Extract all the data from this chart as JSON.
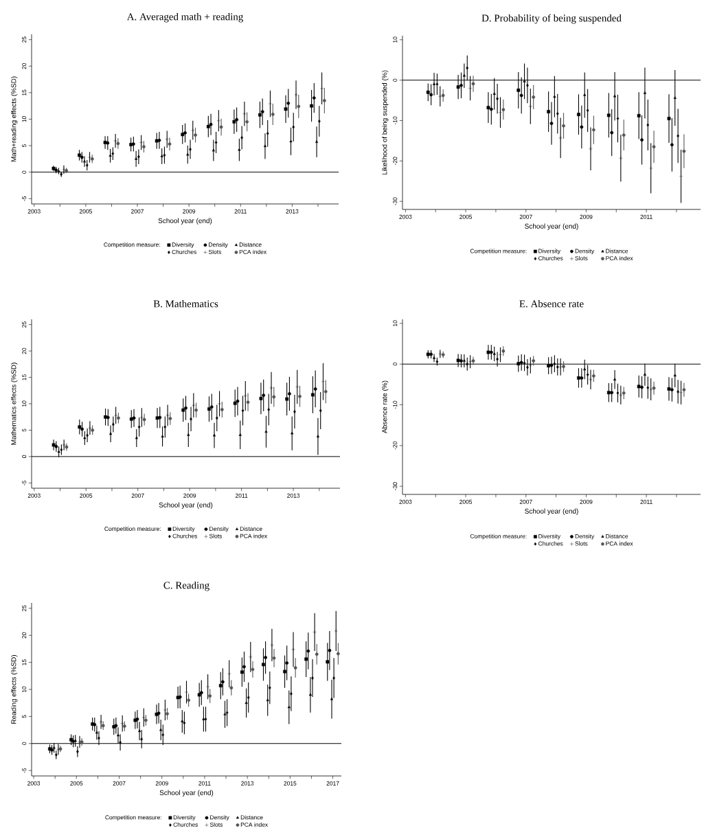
{
  "chart_data": [
    {
      "type": "scatter",
      "title": "A. Averaged math + reading",
      "xlabel": "School year (end)",
      "ylabel": "Math+reading effects (%SD)",
      "legend_title": "Competition measure:",
      "legend": "bottom",
      "xlim": [
        2002.9,
        2014.8
      ],
      "ylim": [
        -6,
        26
      ],
      "xticks": [
        2003,
        {
          "value": 2004,
          "label": null
        },
        2005,
        {
          "value": 2006,
          "label": null
        },
        2007,
        {
          "value": 2008,
          "label": null
        },
        2009,
        {
          "value": 2010,
          "label": null
        },
        2011,
        {
          "value": 2012,
          "label": null
        },
        2013,
        {
          "value": 2014,
          "label": null
        }
      ],
      "yticks": [
        -5,
        0,
        5,
        10,
        15,
        20,
        25
      ],
      "ref_lines": [
        {
          "axis": "y",
          "value": 0,
          "color": "#000000"
        }
      ],
      "series": [
        {
          "name": "Diversity",
          "color": "#000000",
          "marker": "square",
          "x": [
            2003.75,
            2004.75,
            2005.75,
            2006.75,
            2007.75,
            2008.75,
            2009.75,
            2010.75,
            2011.75,
            2012.75,
            2013.75
          ],
          "values": [
            0.7,
            3.2,
            5.6,
            5.2,
            5.9,
            7.1,
            8.6,
            9.5,
            10.8,
            11.9,
            12.5
          ],
          "errors": [
            0.5,
            1,
            1.2,
            1.3,
            1.5,
            1.8,
            2,
            2.3,
            2.5,
            2.6,
            3
          ]
        },
        {
          "name": "Density",
          "color": "#000000",
          "marker": "circle",
          "x": [
            2003.85,
            2004.85,
            2005.85,
            2006.85,
            2007.85,
            2008.85,
            2009.85,
            2010.85,
            2011.85,
            2012.85,
            2013.85
          ],
          "values": [
            0.4,
            2.8,
            5.5,
            5.3,
            6.0,
            7.4,
            9.0,
            9.9,
            11.4,
            13.0,
            14.0
          ],
          "errors": [
            0.6,
            1,
            1.3,
            1.4,
            1.6,
            1.8,
            2,
            2.3,
            2.5,
            2.7,
            2.8
          ]
        },
        {
          "name": "Distance",
          "color": "#000000",
          "marker": "triangle",
          "x": [
            2003.95,
            2004.95,
            2005.95,
            2006.95,
            2007.95,
            2008.95,
            2009.95,
            2010.95,
            2011.95,
            2012.95,
            2013.95
          ],
          "values": [
            0.2,
            2.0,
            3.1,
            2.5,
            3.0,
            3.3,
            4.1,
            4.2,
            4.9,
            5.8,
            5.7
          ],
          "errors": [
            0.6,
            1,
            1.3,
            1.5,
            1.5,
            1.7,
            2,
            2.1,
            2.4,
            2.6,
            2.9
          ]
        },
        {
          "name": "Churches",
          "color": "#000000",
          "marker": "diamond",
          "x": [
            2004.05,
            2005.05,
            2006.05,
            2007.05,
            2008.05,
            2009.05,
            2010.05,
            2011.05,
            2012.05,
            2013.05,
            2014.05
          ],
          "values": [
            -0.4,
            1.3,
            3.5,
            2.9,
            3.2,
            4.3,
            5.6,
            6.5,
            7.3,
            8.5,
            9.6
          ],
          "errors": [
            0.5,
            1,
            1.2,
            1.4,
            1.6,
            1.8,
            2,
            2.2,
            2.5,
            2.7,
            2.9
          ]
        },
        {
          "name": "Slots",
          "color": "#000000",
          "marker": "cross",
          "x": [
            2004.15,
            2005.15,
            2006.15,
            2007.15,
            2008.15,
            2009.15,
            2010.15,
            2011.15,
            2012.15,
            2013.15,
            2014.15
          ],
          "values": [
            0.5,
            2.8,
            5.9,
            5.6,
            6.2,
            7.9,
            9.7,
            11.0,
            12.9,
            14.6,
            15.8
          ],
          "errors": [
            0.8,
            1,
            1.3,
            1.4,
            1.6,
            1.8,
            2,
            2.3,
            2.5,
            2.7,
            3
          ]
        },
        {
          "name": "PCA index",
          "color": "#555555",
          "marker": "circle",
          "x": [
            2004.25,
            2005.25,
            2006.25,
            2007.25,
            2008.25,
            2009.25,
            2010.25,
            2011.25,
            2012.25,
            2013.25,
            2014.25
          ],
          "values": [
            0.3,
            2.5,
            5.4,
            4.8,
            5.3,
            7.0,
            8.5,
            9.5,
            10.9,
            12.4,
            13.5
          ],
          "errors": [
            0.5,
            0.8,
            1,
            1.1,
            1.2,
            1.4,
            1.6,
            1.8,
            2,
            2.2,
            2.4
          ]
        }
      ]
    },
    {
      "type": "scatter",
      "title": "D. Probability of being suspended",
      "xlabel": "School year (end)",
      "ylabel": "Likelihood of being suspended (%)",
      "legend_title": "Competition measure:",
      "legend": "bottom",
      "xlim": [
        2002.9,
        2012.8
      ],
      "ylim": [
        -32,
        11
      ],
      "xticks": [
        2003,
        {
          "value": 2004,
          "label": null
        },
        2005,
        {
          "value": 2006,
          "label": null
        },
        2007,
        {
          "value": 2008,
          "label": null
        },
        2009,
        {
          "value": 2010,
          "label": null
        },
        2011,
        {
          "value": 2012,
          "label": null
        }
      ],
      "yticks": [
        -30,
        -20,
        -10,
        0,
        10
      ],
      "ref_lines": [
        {
          "axis": "y",
          "value": 0,
          "color": "#000000"
        }
      ],
      "series": [
        {
          "name": "Diversity",
          "color": "#000000",
          "marker": "square",
          "x": [
            2003.75,
            2004.75,
            2005.75,
            2006.75,
            2007.75,
            2008.75,
            2009.75,
            2010.75,
            2011.75
          ],
          "values": [
            -3,
            -1.7,
            -6.8,
            -2.5,
            -7.8,
            -8.5,
            -8.7,
            -8.8,
            -9.5
          ],
          "errors": [
            2.2,
            3,
            3.8,
            4.5,
            5,
            5,
            5.5,
            5.8,
            6
          ]
        },
        {
          "name": "Density",
          "color": "#000000",
          "marker": "circle",
          "x": [
            2003.85,
            2004.85,
            2005.85,
            2006.85,
            2007.85,
            2008.85,
            2009.85,
            2010.85,
            2011.85
          ],
          "values": [
            -3.6,
            -1.3,
            -7.2,
            -3.8,
            -10.7,
            -11.6,
            -13,
            -14.8,
            -16
          ],
          "errors": [
            2.6,
            3.2,
            3.8,
            4.5,
            5.3,
            5.3,
            5.8,
            6.1,
            6.6
          ]
        },
        {
          "name": "Distance",
          "color": "#000000",
          "marker": "triangle",
          "x": [
            2003.95,
            2004.95,
            2005.95,
            2006.95,
            2007.95,
            2008.95,
            2009.95,
            2010.95,
            2011.95
          ],
          "values": [
            -1,
            1.1,
            -3.4,
            -0.3,
            -4.1,
            -3.7,
            -4,
            -3.2,
            -4.4
          ],
          "errors": [
            2.8,
            3,
            3.9,
            4.4,
            5.1,
            5.6,
            6,
            6.3,
            6.9
          ]
        },
        {
          "name": "Churches",
          "color": "#000000",
          "marker": "diamond",
          "x": [
            2004.05,
            2005.05,
            2006.05,
            2007.05,
            2008.05,
            2009.05,
            2010.05,
            2011.05,
            2012.05
          ],
          "values": [
            -1,
            3,
            -4.6,
            -1.3,
            -8.3,
            -7.5,
            -9.5,
            -11.1,
            -13.8
          ],
          "errors": [
            2.6,
            3.1,
            3.7,
            4.4,
            4.9,
            5.3,
            5.9,
            6.3,
            6.7
          ]
        },
        {
          "name": "Slots",
          "color": "#000000",
          "marker": "cross",
          "x": [
            2004.15,
            2005.15,
            2006.15,
            2007.15,
            2008.15,
            2009.15,
            2010.15,
            2011.15,
            2012.15
          ],
          "values": [
            -4,
            -2,
            -8,
            -6.5,
            -14.3,
            -17,
            -19.3,
            -21.8,
            -23.8
          ],
          "errors": [
            2.5,
            3,
            3.8,
            4.4,
            5,
            5.3,
            5.8,
            6.2,
            6.6
          ]
        },
        {
          "name": "PCA index",
          "color": "#555555",
          "marker": "circle",
          "x": [
            2004.25,
            2005.25,
            2006.25,
            2007.25,
            2008.25,
            2009.25,
            2010.25,
            2011.25,
            2012.25
          ],
          "values": [
            -3.8,
            -0.9,
            -7.3,
            -4.2,
            -11.3,
            -12.3,
            -13.6,
            -16.5,
            -17.6
          ],
          "errors": [
            1.5,
            2,
            2.5,
            3,
            3.2,
            3.5,
            3.8,
            4,
            4.2
          ]
        }
      ]
    },
    {
      "type": "scatter",
      "title": "B. Mathematics",
      "xlabel": "School year (end)",
      "ylabel": "Mathematics effects (%SD)",
      "legend_title": "Competition measure:",
      "legend": "bottom",
      "xlim": [
        2002.9,
        2014.8
      ],
      "ylim": [
        -6,
        26
      ],
      "xticks": [
        2003,
        {
          "value": 2004,
          "label": null
        },
        2005,
        {
          "value": 2006,
          "label": null
        },
        2007,
        {
          "value": 2008,
          "label": null
        },
        2009,
        {
          "value": 2010,
          "label": null
        },
        2011,
        {
          "value": 2012,
          "label": null
        },
        2013,
        {
          "value": 2014,
          "label": null
        }
      ],
      "yticks": [
        -5,
        0,
        5,
        10,
        15,
        20,
        25
      ],
      "ref_lines": [
        {
          "axis": "y",
          "value": 0,
          "color": "#000000"
        }
      ],
      "series": [
        {
          "name": "Diversity",
          "color": "#000000",
          "marker": "square",
          "x": [
            2003.75,
            2004.75,
            2005.75,
            2006.75,
            2007.75,
            2008.75,
            2009.75,
            2010.75,
            2011.75,
            2012.75,
            2013.75
          ],
          "values": [
            2.2,
            5.6,
            7.5,
            7.1,
            7.3,
            8.8,
            9.0,
            10.1,
            11.0,
            10.9,
            11.7
          ],
          "errors": [
            1,
            1.4,
            1.6,
            1.7,
            1.9,
            2.2,
            2.4,
            2.6,
            3,
            3.1,
            3.5
          ]
        },
        {
          "name": "Density",
          "color": "#000000",
          "marker": "circle",
          "x": [
            2003.85,
            2004.85,
            2005.85,
            2006.85,
            2007.85,
            2008.85,
            2009.85,
            2010.85,
            2011.85,
            2012.85,
            2013.85
          ],
          "values": [
            1.9,
            5.2,
            7.4,
            7.3,
            7.4,
            9.2,
            9.4,
            10.5,
            11.6,
            11.9,
            12.8
          ],
          "errors": [
            1,
            1.4,
            1.6,
            1.7,
            2,
            2.3,
            2.5,
            2.7,
            3,
            3.2,
            3.5
          ]
        },
        {
          "name": "Distance",
          "color": "#000000",
          "marker": "triangle",
          "x": [
            2003.95,
            2004.95,
            2005.95,
            2006.95,
            2007.95,
            2008.95,
            2009.95,
            2010.95,
            2011.95,
            2012.95,
            2013.95
          ],
          "values": [
            0.9,
            3.5,
            4.3,
            3.5,
            3.8,
            4.1,
            4.0,
            4.1,
            4.7,
            4.4,
            3.8
          ],
          "errors": [
            1,
            1.3,
            1.6,
            1.7,
            1.9,
            2.3,
            2.4,
            2.7,
            3,
            3.2,
            3.5
          ]
        },
        {
          "name": "Churches",
          "color": "#000000",
          "marker": "diamond",
          "x": [
            2004.05,
            2005.05,
            2006.05,
            2007.05,
            2008.05,
            2009.05,
            2010.05,
            2011.05,
            2012.05,
            2013.05,
            2014.05
          ],
          "values": [
            1.3,
            4.0,
            6.1,
            5.6,
            5.6,
            7.1,
            7.3,
            8.7,
            8.9,
            8.5,
            8.7
          ],
          "errors": [
            1,
            1.3,
            1.5,
            1.8,
            2,
            2.3,
            2.5,
            2.8,
            3,
            3.2,
            3.5
          ]
        },
        {
          "name": "Slots",
          "color": "#000000",
          "marker": "cross",
          "x": [
            2004.15,
            2005.15,
            2006.15,
            2007.15,
            2008.15,
            2009.15,
            2010.15,
            2011.15,
            2012.15,
            2013.15,
            2014.15
          ],
          "values": [
            2.2,
            5.4,
            7.8,
            7.4,
            7.8,
            9.7,
            10.0,
            11.5,
            13.0,
            13.2,
            14.2
          ],
          "errors": [
            1,
            1.3,
            1.6,
            1.8,
            2,
            2.3,
            2.4,
            2.8,
            3,
            3.2,
            3.5
          ]
        },
        {
          "name": "PCA index",
          "color": "#555555",
          "marker": "circle",
          "x": [
            2004.25,
            2005.25,
            2006.25,
            2007.25,
            2008.25,
            2009.25,
            2010.25,
            2011.25,
            2012.25,
            2013.25,
            2014.25
          ],
          "values": [
            1.8,
            5.0,
            7.3,
            7.0,
            7.2,
            8.8,
            8.9,
            10.3,
            11.3,
            11.4,
            12.3
          ],
          "errors": [
            0.7,
            0.9,
            1,
            1.1,
            1.2,
            1.4,
            1.5,
            1.7,
            1.9,
            2,
            2.2
          ]
        }
      ]
    },
    {
      "type": "scatter",
      "title": "E. Absence rate",
      "xlabel": "School year (end)",
      "ylabel": "Absence rate (%)",
      "legend_title": "Competition measure:",
      "legend": "bottom",
      "xlim": [
        2002.9,
        2012.8
      ],
      "ylim": [
        -32,
        11
      ],
      "xticks": [
        2003,
        {
          "value": 2004,
          "label": null
        },
        2005,
        {
          "value": 2006,
          "label": null
        },
        2007,
        {
          "value": 2008,
          "label": null
        },
        2009,
        {
          "value": 2010,
          "label": null
        },
        2011,
        {
          "value": 2012,
          "label": null
        }
      ],
      "yticks": [
        -30,
        -20,
        -10,
        0,
        10
      ],
      "ref_lines": [
        {
          "axis": "y",
          "value": 0,
          "color": "#000000"
        }
      ],
      "series": [
        {
          "name": "Diversity",
          "color": "#000000",
          "marker": "square",
          "x": [
            2003.75,
            2004.75,
            2005.75,
            2006.75,
            2007.75,
            2008.75,
            2009.75,
            2010.75,
            2011.75
          ],
          "values": [
            2.4,
            0.9,
            2.9,
            0.1,
            -0.4,
            -3.4,
            -7.0,
            -5.5,
            -6.1
          ],
          "errors": [
            1,
            1.6,
            1.8,
            2,
            2.1,
            2.4,
            2.3,
            2.7,
            2.9
          ]
        },
        {
          "name": "Density",
          "color": "#000000",
          "marker": "circle",
          "x": [
            2003.85,
            2004.85,
            2005.85,
            2006.85,
            2007.85,
            2008.85,
            2009.85,
            2010.85,
            2011.85
          ],
          "values": [
            2.4,
            0.8,
            2.9,
            0.4,
            -0.3,
            -3.4,
            -7.0,
            -5.7,
            -6.3
          ],
          "errors": [
            1,
            1.6,
            1.8,
            2,
            2.1,
            2.4,
            2.3,
            2.7,
            2.9
          ]
        },
        {
          "name": "Distance",
          "color": "#000000",
          "marker": "triangle",
          "x": [
            2003.95,
            2004.95,
            2005.95,
            2006.95,
            2007.95,
            2008.95,
            2009.95,
            2010.95,
            2011.95
          ],
          "values": [
            1.5,
            0.8,
            2.5,
            0.3,
            0.1,
            -1.3,
            -3.8,
            -2.6,
            -2.8
          ],
          "errors": [
            1,
            1.6,
            1.8,
            2,
            2.1,
            2.4,
            2.3,
            2.7,
            2.9
          ]
        },
        {
          "name": "Churches",
          "color": "#000000",
          "marker": "diamond",
          "x": [
            2004.05,
            2005.05,
            2006.05,
            2007.05,
            2008.05,
            2009.05,
            2010.05,
            2011.05,
            2012.05
          ],
          "values": [
            0.6,
            0.0,
            1.2,
            -0.8,
            -0.7,
            -2.6,
            -7.1,
            -5.8,
            -6.8
          ],
          "errors": [
            1,
            1.6,
            1.8,
            2,
            2.1,
            2.4,
            2.3,
            2.7,
            2.9
          ]
        },
        {
          "name": "Slots",
          "color": "#000000",
          "marker": "cross",
          "x": [
            2004.15,
            2005.15,
            2006.15,
            2007.15,
            2008.15,
            2009.15,
            2010.15,
            2011.15,
            2012.15
          ],
          "values": [
            2.5,
            0.6,
            2.3,
            -0.3,
            -0.7,
            -3.8,
            -7.6,
            -6.2,
            -7.0
          ],
          "errors": [
            1,
            1.6,
            1.8,
            2,
            2.1,
            2.4,
            2.3,
            2.7,
            2.9
          ]
        },
        {
          "name": "PCA index",
          "color": "#555555",
          "marker": "circle",
          "x": [
            2004.25,
            2005.25,
            2006.25,
            2007.25,
            2008.25,
            2009.25,
            2010.25,
            2011.25,
            2012.25
          ],
          "values": [
            2.3,
            0.8,
            3.2,
            0.8,
            -0.6,
            -2.9,
            -7.1,
            -5.9,
            -6.3
          ],
          "errors": [
            0.8,
            1,
            1.2,
            1.2,
            1.3,
            1.5,
            1.5,
            1.6,
            1.7
          ]
        }
      ]
    },
    {
      "type": "scatter",
      "title": "C. Reading",
      "xlabel": "School year (end)",
      "ylabel": "Reading effects (%SD)",
      "legend_title": "Competition measure:",
      "legend": "bottom",
      "xlim": [
        2002.9,
        2017.4
      ],
      "ylim": [
        -6,
        26
      ],
      "xticks": [
        2003,
        {
          "value": 2004,
          "label": null
        },
        2005,
        {
          "value": 2006,
          "label": null
        },
        2007,
        {
          "value": 2008,
          "label": null
        },
        2009,
        {
          "value": 2010,
          "label": null
        },
        2011,
        {
          "value": 2012,
          "label": null
        },
        2013,
        {
          "value": 2014,
          "label": null
        },
        2015,
        {
          "value": 2016,
          "label": null
        },
        2017
      ],
      "yticks": [
        -5,
        0,
        5,
        10,
        15,
        20,
        25
      ],
      "ref_lines": [
        {
          "axis": "y",
          "value": 0,
          "color": "#000000"
        }
      ],
      "series": [
        {
          "name": "Diversity",
          "color": "#000000",
          "marker": "square",
          "x": [
            2003.75,
            2004.75,
            2005.75,
            2006.75,
            2007.75,
            2008.75,
            2009.75,
            2010.75,
            2011.75,
            2012.75,
            2013.75,
            2014.75,
            2015.75,
            2016.75
          ],
          "values": [
            -1.0,
            0.7,
            3.6,
            3.1,
            4.3,
            5.4,
            8.5,
            9.0,
            10.7,
            13.2,
            14.6,
            13.3,
            15.6,
            15.1
          ],
          "errors": [
            0.8,
            1,
            1.2,
            1.5,
            1.6,
            1.8,
            2,
            2.2,
            2.5,
            2.7,
            3,
            3,
            3.3,
            3.5
          ]
        },
        {
          "name": "Density",
          "color": "#000000",
          "marker": "circle",
          "x": [
            2003.85,
            2004.85,
            2005.85,
            2006.85,
            2007.85,
            2008.85,
            2009.85,
            2010.85,
            2011.85,
            2012.85,
            2013.85,
            2014.85,
            2015.85,
            2016.85
          ],
          "values": [
            -1.2,
            0.4,
            3.5,
            3.3,
            4.5,
            5.6,
            8.6,
            9.4,
            11.4,
            14.2,
            15.9,
            14.9,
            17.1,
            17.2
          ],
          "errors": [
            0.9,
            1.1,
            1.3,
            1.5,
            1.7,
            1.9,
            2.1,
            2.3,
            2.5,
            2.8,
            3,
            3.2,
            3.4,
            3.6
          ]
        },
        {
          "name": "Distance",
          "color": "#000000",
          "marker": "triangle",
          "x": [
            2003.95,
            2004.95,
            2005.95,
            2006.95,
            2007.95,
            2008.95,
            2009.95,
            2010.95,
            2011.95,
            2012.95,
            2013.95,
            2014.95,
            2015.95,
            2016.95
          ],
          "values": [
            -0.8,
            0.5,
            2.0,
            1.5,
            2.3,
            2.5,
            4.1,
            4.5,
            5.4,
            7.5,
            8.0,
            6.7,
            9.0,
            8.2
          ],
          "errors": [
            0.9,
            1.1,
            1.3,
            1.5,
            1.7,
            1.9,
            2.1,
            2.3,
            2.5,
            2.7,
            2.9,
            3.1,
            3.3,
            3.6
          ]
        },
        {
          "name": "Churches",
          "color": "#000000",
          "marker": "diamond",
          "x": [
            2004.05,
            2005.05,
            2006.05,
            2007.05,
            2008.05,
            2009.05,
            2010.05,
            2011.05,
            2012.05,
            2013.05,
            2014.05,
            2015.05,
            2016.05,
            2017.05
          ],
          "values": [
            -2.1,
            -1.5,
            1.0,
            0.2,
            0.8,
            1.6,
            3.8,
            4.5,
            5.7,
            8.5,
            10.3,
            9.2,
            12.1,
            12.1
          ],
          "errors": [
            0.8,
            1,
            1.3,
            1.5,
            1.7,
            1.9,
            2.1,
            2.3,
            2.5,
            2.8,
            3,
            3.2,
            3.5,
            3.7
          ]
        },
        {
          "name": "Slots",
          "color": "#000000",
          "marker": "cross",
          "x": [
            2004.15,
            2005.15,
            2006.15,
            2007.15,
            2008.15,
            2009.15,
            2010.15,
            2011.15,
            2012.15,
            2013.15,
            2014.15,
            2015.15,
            2016.15,
            2017.15
          ],
          "values": [
            -1.1,
            0.3,
            4.0,
            3.7,
            4.8,
            6.2,
            9.5,
            10.5,
            12.9,
            16.0,
            18.2,
            17.4,
            20.6,
            20.8
          ],
          "errors": [
            1,
            1.1,
            1.3,
            1.5,
            1.7,
            1.9,
            2.1,
            2.3,
            2.5,
            2.8,
            3,
            3.2,
            3.5,
            3.7
          ]
        },
        {
          "name": "PCA index",
          "color": "#555555",
          "marker": "circle",
          "x": [
            2004.25,
            2005.25,
            2006.25,
            2007.25,
            2008.25,
            2009.25,
            2010.25,
            2011.25,
            2012.25,
            2013.25,
            2014.25,
            2015.25,
            2016.25,
            2017.25
          ],
          "values": [
            -1.0,
            0.3,
            3.3,
            3.2,
            4.3,
            5.5,
            8.0,
            8.8,
            10.3,
            13.7,
            15.8,
            14.0,
            16.5,
            16.6
          ],
          "errors": [
            0.6,
            0.7,
            0.8,
            0.9,
            1,
            1.1,
            1.2,
            1.3,
            1.4,
            1.5,
            1.7,
            1.8,
            1.9,
            2
          ]
        }
      ]
    }
  ]
}
